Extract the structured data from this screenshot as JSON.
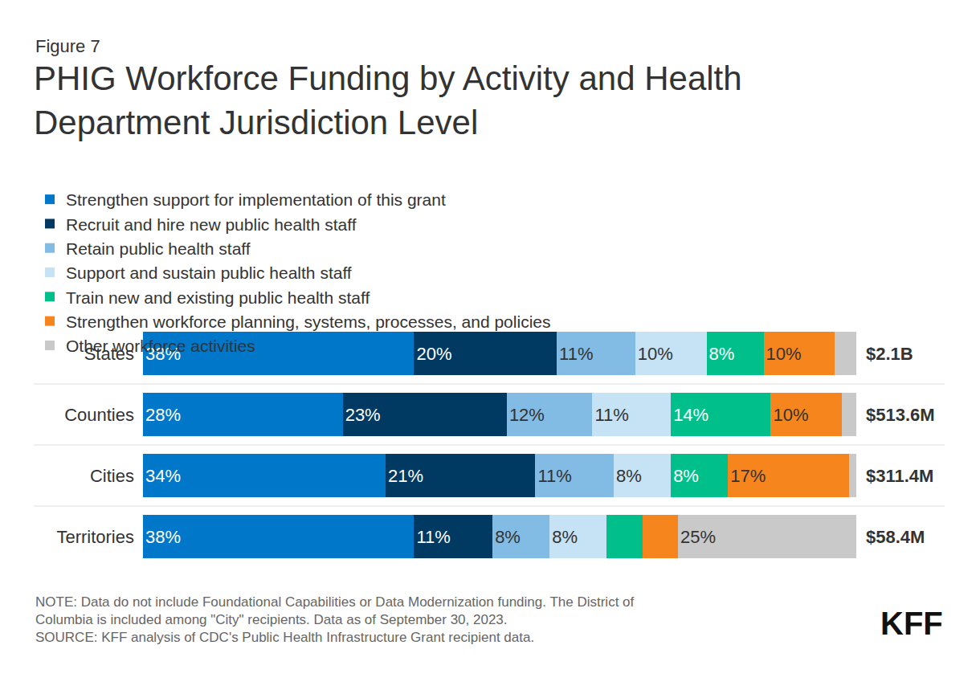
{
  "chart_data": {
    "type": "bar",
    "orientation": "horizontal",
    "stacked": true,
    "data_labels": true,
    "tick_labels": "y",
    "grid": false,
    "legend": "top",
    "figure_label": "Figure 7",
    "title": "PHIG Workforce Funding by Activity and Health Department Jurisdiction Level",
    "categories": [
      "States",
      "Counties",
      "Cities",
      "Territories"
    ],
    "total_labels": [
      "$2.1B",
      "$513.6M",
      "$311.4M",
      "$58.4M"
    ],
    "xlim": [
      0,
      100
    ],
    "xticks": [],
    "series": [
      {
        "name": "Strengthen support for implementation of this grant",
        "color": "#0077c8",
        "values": [
          38,
          28,
          34,
          38
        ],
        "value_labels": [
          "38%",
          "28%",
          "34%",
          "38%"
        ]
      },
      {
        "name": "Recruit and hire new public health staff",
        "color": "#003a63",
        "values": [
          20,
          23,
          21,
          11
        ],
        "value_labels": [
          "20%",
          "23%",
          "21%",
          "11%"
        ]
      },
      {
        "name": "Retain public health staff",
        "color": "#82bbe4",
        "values": [
          11,
          12,
          11,
          8
        ],
        "value_labels": [
          "11%",
          "12%",
          "11%",
          "8%"
        ]
      },
      {
        "name": "Support and sustain public health staff",
        "color": "#c6e2f5",
        "values": [
          10,
          11,
          8,
          8
        ],
        "value_labels": [
          "10%",
          "11%",
          "8%",
          "8%"
        ]
      },
      {
        "name": "Train new and existing public health staff",
        "color": "#00bf8a",
        "values": [
          8,
          14,
          8,
          5
        ],
        "value_labels": [
          "8%",
          "14%",
          "8%",
          null
        ]
      },
      {
        "name": "Strengthen workforce planning, systems, processes, and policies",
        "color": "#f7851e",
        "values": [
          10,
          10,
          17,
          5
        ],
        "value_labels": [
          "10%",
          "10%",
          "17%",
          null
        ]
      },
      {
        "name": "Other workforce activities",
        "color": "#c9c9c9",
        "values": [
          3,
          2,
          1,
          25
        ],
        "value_labels": [
          null,
          null,
          null,
          "25%"
        ]
      }
    ],
    "note": [
      "NOTE: Data do not include Foundational Capabilities or Data Modernization funding. The District of",
      "Columbia is included among \"City\" recipients. Data as of September 30, 2023."
    ],
    "source": "SOURCE: KFF analysis of CDC's Public Health Infrastructure Grant recipient data.",
    "logo": "KFF"
  }
}
